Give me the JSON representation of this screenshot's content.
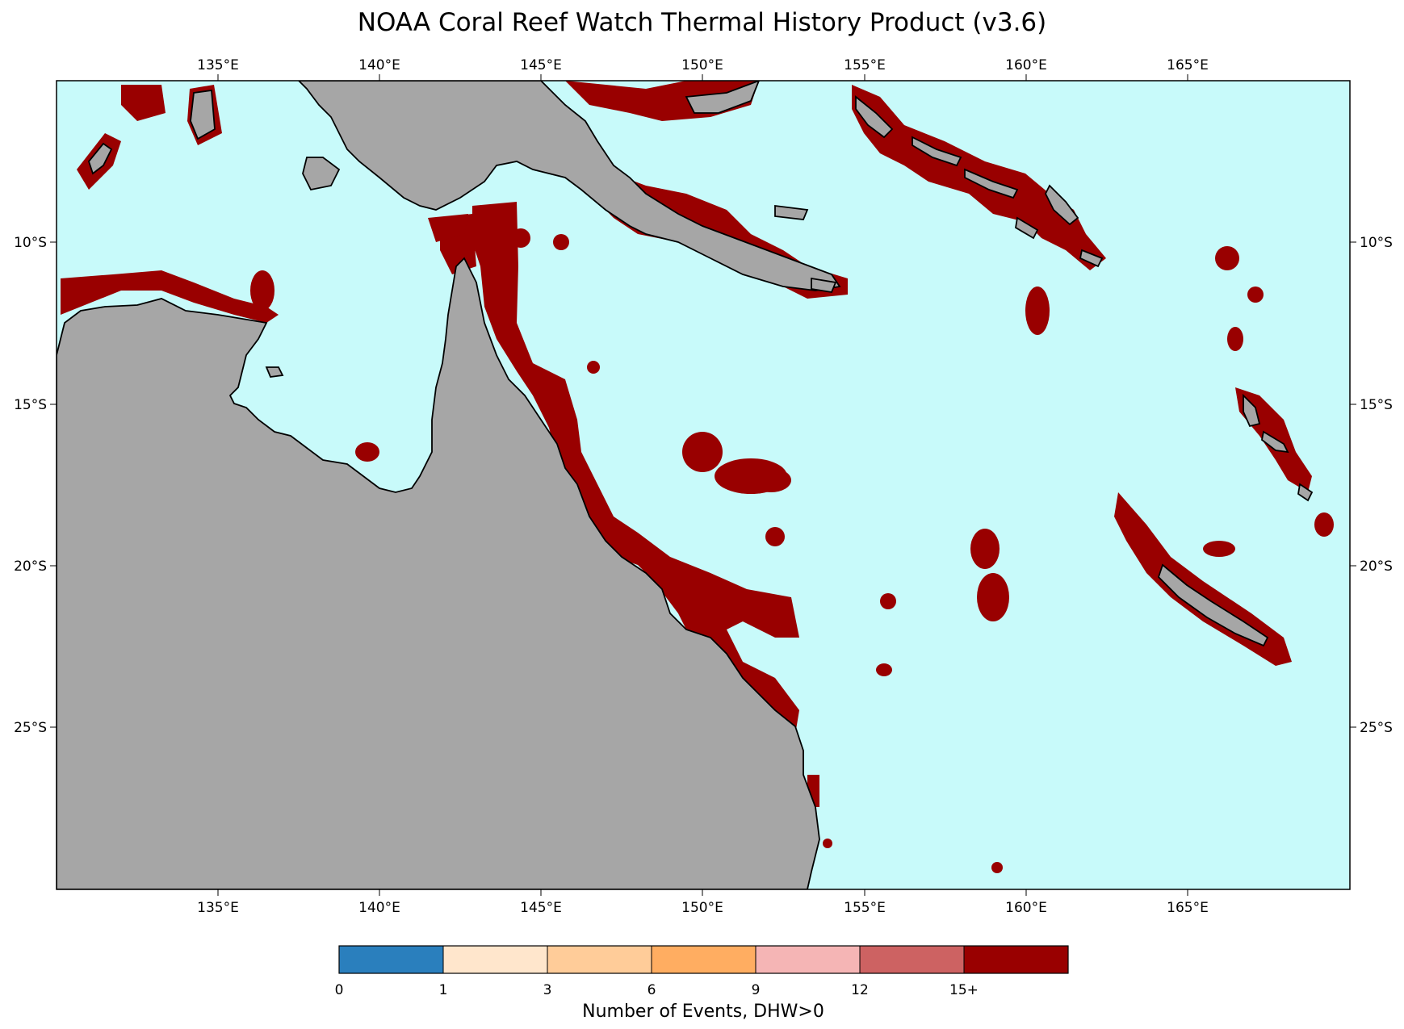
{
  "title": "NOAA Coral Reef Watch Thermal History Product (v3.6)",
  "map": {
    "lon_range": [
      130,
      170
    ],
    "lat_range": [
      -30,
      -5
    ],
    "ocean_color": "#c8fafa",
    "land_color": "#a6a6a6",
    "event_color": "#990000",
    "lon_ticks": [
      "135°E",
      "140°E",
      "145°E",
      "150°E",
      "155°E",
      "160°E",
      "165°E"
    ],
    "lat_ticks": [
      "10°S",
      "15°S",
      "20°S",
      "25°S"
    ]
  },
  "colorbar": {
    "title": "Number of Events, DHW>0",
    "labels": [
      "0",
      "1",
      "3",
      "6",
      "9",
      "12",
      "15+"
    ],
    "colors": [
      "#2a7fbd",
      "#ffe6cc",
      "#ffcc99",
      "#ffad61",
      "#f5b5b5",
      "#cd6262",
      "#990000"
    ]
  }
}
